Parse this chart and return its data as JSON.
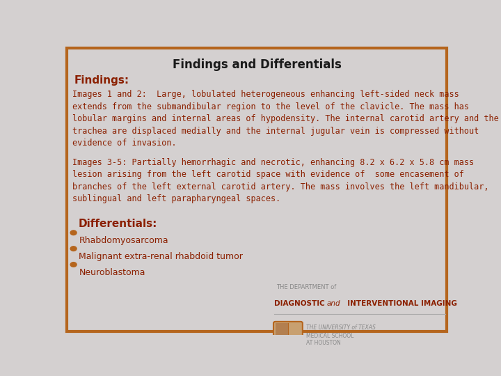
{
  "title": "Findings and Differentials",
  "title_color": "#1a1a1a",
  "title_fontsize": 12,
  "background_color": "#d4d0d0",
  "border_color": "#b5651d",
  "text_color": "#8b2000",
  "findings_header": "Findings:",
  "findings_header_fontsize": 11,
  "para1": "Images 1 and 2:  Large, lobulated heterogeneous enhancing left-sided neck mass\nextends from the submandibular region to the level of the clavicle. The mass has\nlobular margins and internal areas of hypodensity. The internal carotid artery and the\ntrachea are displaced medially and the internal jugular vein is compressed without\nevidence of invasion.",
  "para2": "Images 3-5: Partially hemorrhagic and necrotic, enhancing 8.2 x 6.2 x 5.8 cm mass\nlesion arising from the left carotid space with evidence of  some encasement of\nbranches of the left external carotid artery. The mass involves the left mandibular,\nsublingual and left parapharyngeal spaces.",
  "differentials_header": "Differentials:",
  "differentials_header_fontsize": 11,
  "bullet_items": [
    "Rhabdomyosarcoma",
    "Malignant extra-renal rhabdoid tumor",
    "Neuroblastoma"
  ],
  "logo_text_line1": "THE DEPARTMENT of",
  "logo_text_line2_a": "DIAGNOSTIC ",
  "logo_text_line2_b": "and",
  "logo_text_line2_c": "  INTERVENTIONAL IMAGING",
  "logo_text_line3": "THE UNIVERSITY of TEXAS",
  "logo_text_line4": "MEDICAL SCHOOL",
  "logo_text_line5": "AT HOUSTON",
  "body_fontsize": 8.5,
  "bullet_fontsize": 9,
  "bullet_color": "#b5651d",
  "logo_gray": "#888888",
  "logo_brown": "#8b2000",
  "logo_line_color": "#aaaaaa"
}
